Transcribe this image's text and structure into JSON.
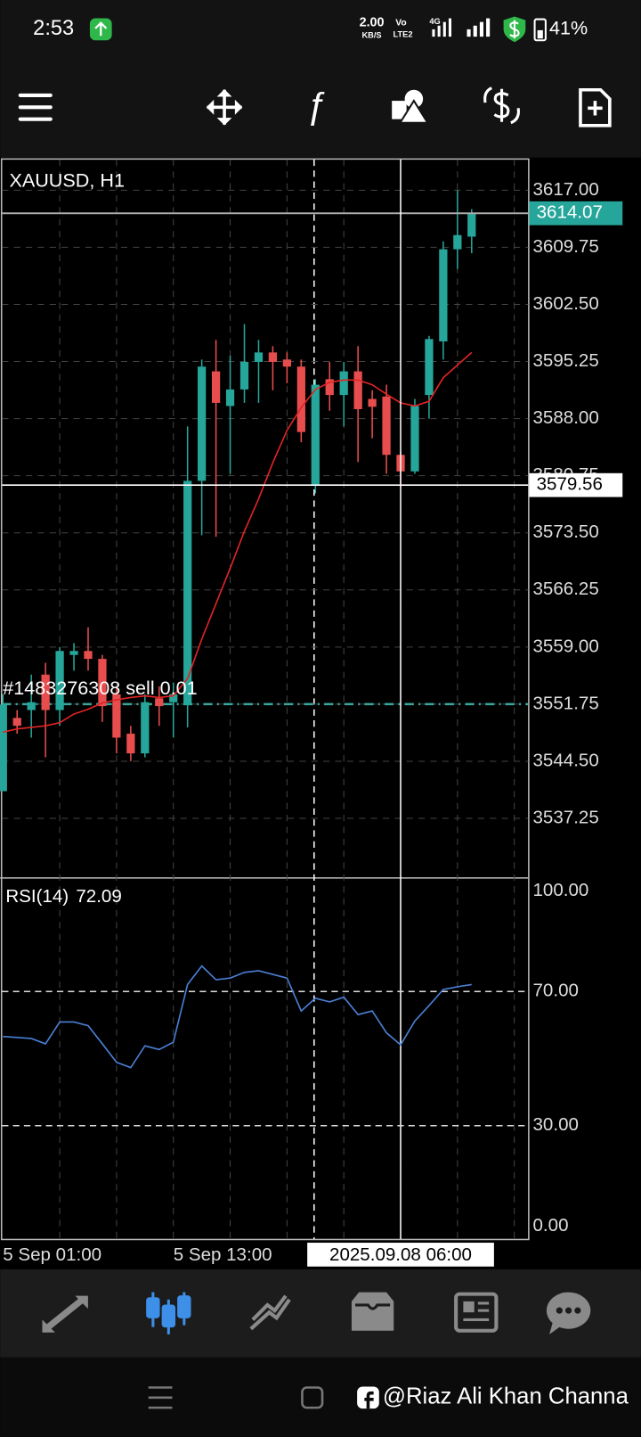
{
  "status_bar": {
    "time": "2:53",
    "net_speed": "2.00",
    "net_unit": "KB/S",
    "volte": "Vo",
    "lte": "LTE2",
    "network": "4G",
    "battery": "41%"
  },
  "chart_data": [
    {
      "type": "candlestick",
      "title": "XAUUSD, H1",
      "categories": [
        "5 Sep 01:00",
        null,
        null,
        null,
        null,
        null,
        null,
        null,
        null,
        null,
        null,
        null,
        "5 Sep 13:00",
        null,
        null,
        null,
        null,
        null,
        null,
        null,
        null,
        null,
        null,
        null,
        null,
        null,
        null,
        null,
        "2025.09.08 06:00",
        null,
        null,
        null,
        null,
        null
      ],
      "open": [
        3540.7,
        3550,
        3551,
        3555.5,
        3551,
        3558,
        3558.5,
        3557.5,
        3553,
        3548,
        3545.5,
        3552.5,
        3552,
        3551.7,
        3580.1,
        3594,
        3589.6,
        3591.7,
        3595.2,
        3596.4,
        3595.5,
        3594.6,
        3579.5,
        3593,
        3591,
        3594,
        3590.5,
        3590.8,
        3583.4,
        3581.3,
        3591,
        3597.8,
        3609.5,
        3611.1
      ],
      "high": [
        3553,
        3551,
        3555.5,
        3557,
        3559,
        3559.5,
        3561.5,
        3558,
        3554,
        3549,
        3553,
        3554,
        3554.5,
        3587,
        3595.5,
        3598,
        3596,
        3600,
        3598,
        3597.2,
        3596.4,
        3595.5,
        3593,
        3595.2,
        3595.2,
        3597.2,
        3591.6,
        3592.3,
        3583.8,
        3590.5,
        3598.5,
        3610.5,
        3617,
        3614.6
      ],
      "low": [
        3540.7,
        3548,
        3547.5,
        3545,
        3549,
        3556,
        3556,
        3549.5,
        3545.5,
        3544.5,
        3545,
        3549,
        3547.5,
        3548.8,
        3573.2,
        3573,
        3581,
        3590,
        3590,
        3591.6,
        3592.5,
        3585,
        3578.5,
        3589,
        3587,
        3582.5,
        3585.5,
        3581,
        3579.3,
        3581,
        3588,
        3595.5,
        3607,
        3609
      ],
      "close": [
        3551.7,
        3549,
        3552,
        3551,
        3558.5,
        3558.5,
        3557.5,
        3551.5,
        3547.5,
        3545.5,
        3552,
        3551.5,
        3553,
        3580.1,
        3594.6,
        3590,
        3591.7,
        3595.2,
        3596.4,
        3595.2,
        3594.6,
        3586.3,
        3592.3,
        3591,
        3594,
        3589.2,
        3589.5,
        3583.4,
        3581.3,
        3589.6,
        3598.1,
        3609.5,
        3611.3,
        3614.07
      ],
      "up_color": "#26a69a",
      "down_color": "#e84d4d",
      "moving_average": {
        "color": "#e02424",
        "values": [
          3548.2,
          3548.6,
          3548.8,
          3549,
          3549.4,
          3550.5,
          3551.1,
          3551.9,
          3552.3,
          3552.6,
          3552.8,
          3552.6,
          3552.8,
          3555,
          3560,
          3564.5,
          3569,
          3573.7,
          3577.8,
          3582.4,
          3586.5,
          3589.4,
          3591.7,
          3592.6,
          3592.9,
          3592.9,
          3592.3,
          3591.1,
          3590,
          3589.6,
          3590.2,
          3593.2,
          3594.8,
          3596.4
        ]
      },
      "order": {
        "label": "#1483276308 sell 0.01",
        "price": 3551.75,
        "color": "#3aa59b"
      },
      "crosshair": {
        "price": 3579.56,
        "category": 28
      },
      "ylim": [
        3529.8,
        3620.9
      ],
      "yticks": [
        {
          "value": 3617,
          "label": "3617.00"
        },
        3609.75,
        {
          "value": 3602.5,
          "label": "3602.50"
        },
        3595.25,
        {
          "value": 3588,
          "label": "3588.00"
        },
        3580.75,
        {
          "value": 3573.5,
          "label": "3573.50"
        },
        3566.25,
        {
          "value": 3559,
          "label": "3559.00"
        },
        3551.75,
        {
          "value": 3544.5,
          "label": "3544.50"
        },
        3537.25
      ],
      "grid": true
    },
    {
      "type": "line",
      "title": "RSI(14)",
      "color": "#4a7fd4",
      "values": [
        56.6,
        56.3,
        56,
        54.4,
        60.9,
        60.9,
        59.8,
        54.4,
        48.9,
        47.3,
        53.8,
        52.7,
        54.9,
        72.1,
        77.6,
        73.5,
        74,
        75.7,
        76.2,
        75.1,
        74,
        64.2,
        68,
        66.9,
        68.3,
        63.1,
        64.2,
        57.7,
        54.1,
        61.2,
        65.8,
        70.6,
        71.4,
        72.09
      ],
      "ylim": [
        -3.8,
        103.3
      ],
      "yticks": [
        {
          "value": 100,
          "label": "100.00"
        },
        {
          "value": 70,
          "label": "70.00"
        },
        {
          "value": 30,
          "label": "30.00"
        },
        {
          "value": 0,
          "label": "0.00"
        }
      ],
      "levels": [
        70,
        30
      ]
    }
  ],
  "watermark": "@Riaz Ali Khan Channa"
}
